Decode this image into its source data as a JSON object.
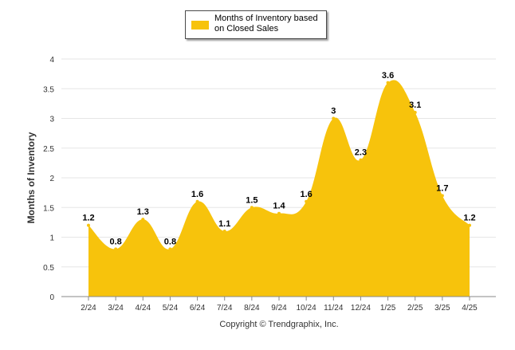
{
  "chart_data": {
    "type": "area",
    "categories": [
      "2/24",
      "3/24",
      "4/24",
      "5/24",
      "6/24",
      "7/24",
      "8/24",
      "9/24",
      "10/24",
      "11/24",
      "12/24",
      "1/25",
      "2/25",
      "3/25",
      "4/25"
    ],
    "series": [
      {
        "name": "Months of Inventory based on Closed Sales",
        "values": [
          1.2,
          0.8,
          1.3,
          0.8,
          1.6,
          1.1,
          1.5,
          1.4,
          1.6,
          3,
          2.3,
          3.6,
          3.1,
          1.7,
          1.2
        ],
        "labels": [
          "1.2",
          "0.8",
          "1.3",
          "0.8",
          "1.6",
          "1.1",
          "1.5",
          "1.4",
          "1.6",
          "3",
          "2.3",
          "3.6",
          "3.1",
          "1.7",
          "1.2"
        ]
      }
    ],
    "ylabel": "Months of Inventory",
    "ylim": [
      0,
      4
    ],
    "yticks": [
      "0",
      "0.5",
      "1",
      "1.5",
      "2",
      "2.5",
      "3",
      "3.5",
      "4"
    ],
    "grid": true,
    "legend_position": "top-center",
    "colors": {
      "area": "#f7c30c",
      "grid": "#e6e6e6",
      "axis": "#8a8a8a",
      "text": "#000000"
    }
  },
  "legend": {
    "label": "Months of Inventory based on Closed Sales"
  },
  "footer": {
    "copyright": "Copyright © Trendgraphix, Inc."
  }
}
